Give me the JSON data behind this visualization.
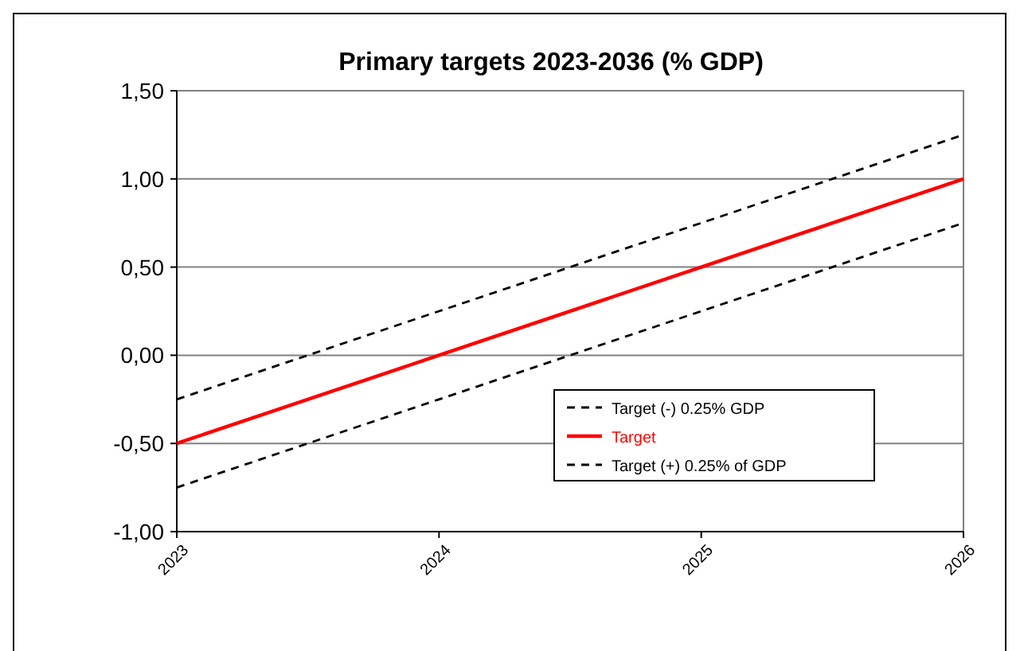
{
  "chart_data": {
    "type": "line",
    "title": "Primary targets 2023-2036 (% GDP)",
    "x": [
      2023,
      2024,
      2025,
      2026
    ],
    "series": [
      {
        "name": "Target (-) 0.25% GDP",
        "color": "#000000",
        "line_style": "dashed",
        "values": [
          -0.75,
          -0.25,
          0.25,
          0.75
        ]
      },
      {
        "name": "Target",
        "color": "#ff0000",
        "line_style": "solid",
        "values": [
          -0.5,
          0,
          0.5,
          1
        ]
      },
      {
        "name": "Target (+) 0.25% of GDP",
        "color": "#000000",
        "line_style": "dashed",
        "values": [
          -0.25,
          0.25,
          0.75,
          1.25
        ]
      }
    ],
    "xlim": [
      2023,
      2026
    ],
    "xticks": [
      2023,
      2024,
      2025,
      2026
    ],
    "ylim": [
      -1,
      1.5
    ],
    "yticks": [
      {
        "value": -1,
        "label": "-1,00"
      },
      {
        "value": -0.5,
        "label": "-0,50"
      },
      {
        "value": 0,
        "label": "0,00"
      },
      {
        "value": 0.5,
        "label": "0,50"
      },
      {
        "value": 1,
        "label": "1,00"
      },
      {
        "value": 1.5,
        "label": "1,50"
      }
    ],
    "grid": "y",
    "legend": "bottom right",
    "marker": "none"
  }
}
